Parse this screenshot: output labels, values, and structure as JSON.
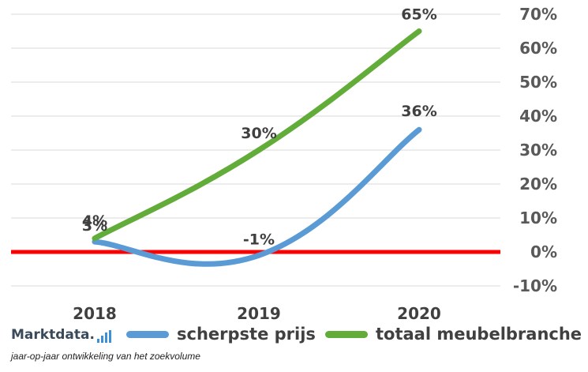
{
  "chart_data": {
    "type": "line",
    "categories": [
      "2018",
      "2019",
      "2020"
    ],
    "series": [
      {
        "name": "scherpste prijs",
        "values": [
          3,
          -1,
          36
        ],
        "labels": [
          "3%",
          "-1%",
          "36%"
        ],
        "color": "#5b9bd5"
      },
      {
        "name": "totaal meubelbranche",
        "values": [
          4,
          30,
          65
        ],
        "labels": [
          "4%",
          "30%",
          "65%"
        ],
        "color": "#62ac3a"
      }
    ],
    "ylim": [
      -10,
      70
    ],
    "yticks": [
      -10,
      0,
      10,
      20,
      30,
      40,
      50,
      60,
      70
    ],
    "ytick_labels": [
      "-10%",
      "0%",
      "10%",
      "20%",
      "30%",
      "40%",
      "50%",
      "60%",
      "70%"
    ],
    "zero_line_color": "#ff0000",
    "grid": true
  },
  "brand": "Marktdata.",
  "caption": "jaar-op-jaar ontwikkeling van het zoekvolume"
}
